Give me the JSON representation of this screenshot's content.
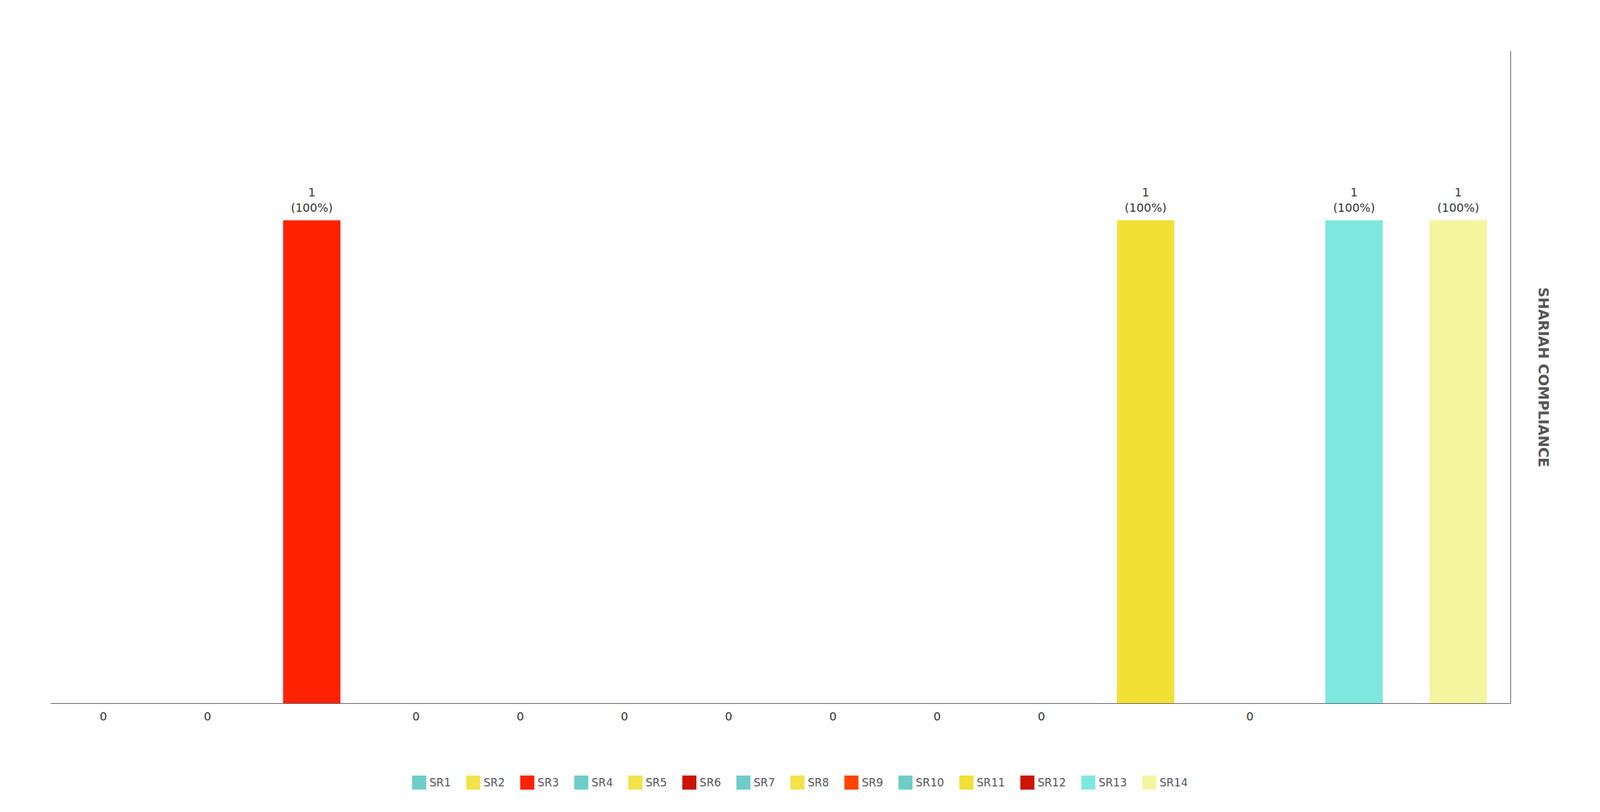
{
  "chart_data": {
    "type": "bar",
    "categories": [
      "SR1",
      "SR2",
      "SR3",
      "SR4",
      "SR5",
      "SR6",
      "SR7",
      "SR8",
      "SR9",
      "SR10",
      "SR11",
      "SR12",
      "SR13",
      "SR14"
    ],
    "values": [
      0,
      0,
      1,
      0,
      0,
      0,
      0,
      0,
      0,
      0,
      1,
      0,
      1,
      1
    ],
    "value_labels": [
      "0",
      "0",
      "1\n(100%)",
      "0",
      "0",
      "0",
      "0",
      "0",
      "0",
      "0",
      "1\n(100%)",
      "0",
      "1\n(100%)",
      "1\n(100%)"
    ],
    "colors": [
      "#6ecdc8",
      "#f2e34a",
      "#ff2200",
      "#6ecdc8",
      "#f2e34a",
      "#cc1500",
      "#6ecdc8",
      "#f2e34a",
      "#ff4400",
      "#6ecdc8",
      "#f2e034",
      "#cc1500",
      "#7de8de",
      "#f5f5a0"
    ],
    "ylabel": "SHARIAH COMPLIANCE",
    "ylim": [
      0,
      1.35
    ],
    "tick_labels": false,
    "grid": false,
    "legend": "bottom",
    "data_labels": true
  }
}
